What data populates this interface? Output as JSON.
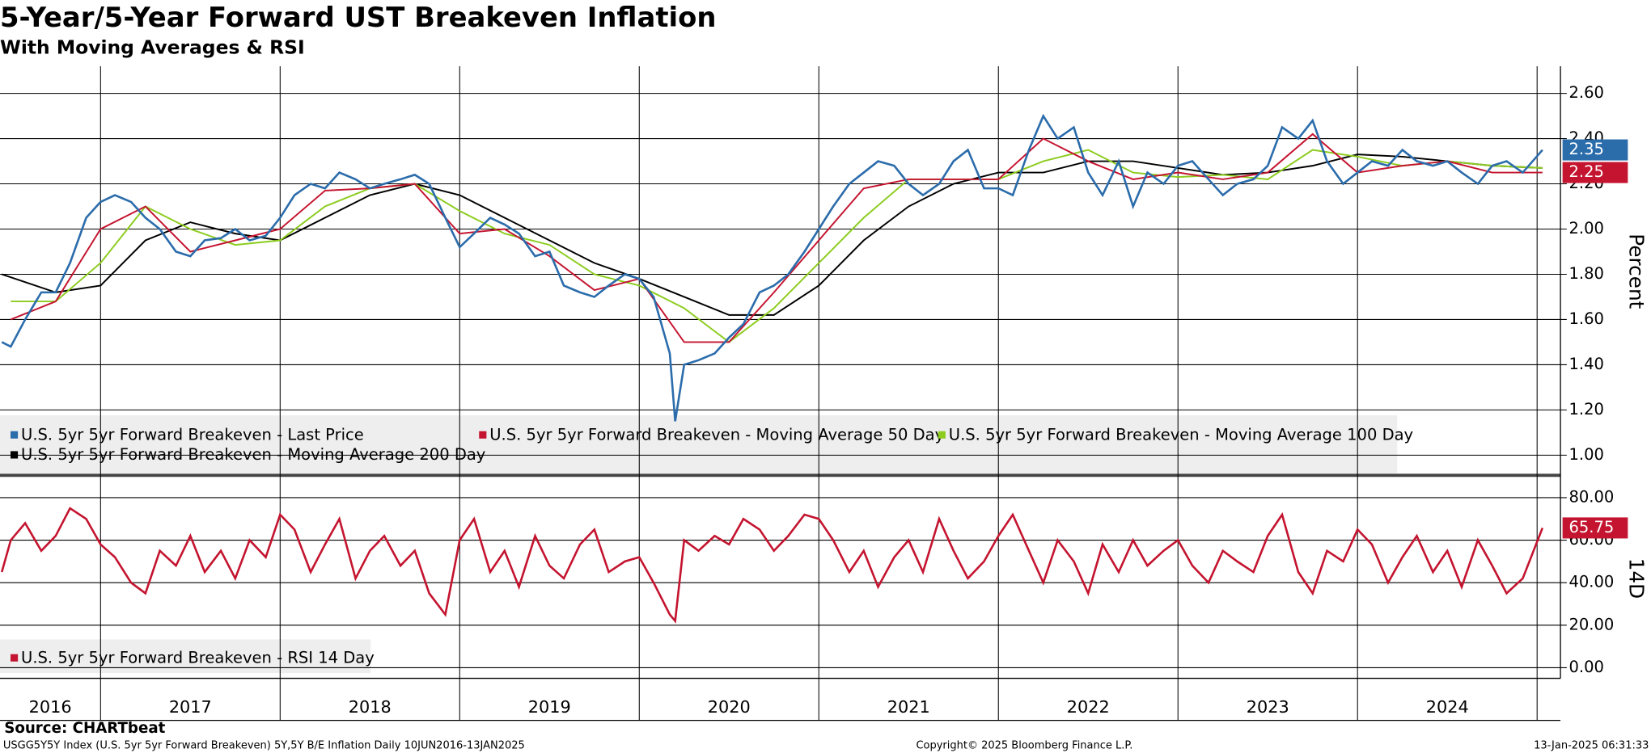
{
  "chart_data": {
    "type": "line",
    "title": "5-Year/5-Year Forward UST Breakeven Inflation",
    "subtitle": "With Moving Averages & RSI",
    "source": "Source: CHARTbeat",
    "footer_left": "USGG5Y5Y Index (U.S. 5yr 5yr Forward Breakeven) 5Y,5Y B/E Inflation  Daily 10JUN2016-13JAN2025",
    "footer_center": "Copyright© 2025 Bloomberg Finance L.P.",
    "footer_right": "13-Jan-2025 06:31:33",
    "xlim": [
      2016.44,
      2025.13
    ],
    "xgrid": [
      2017,
      2018,
      2019,
      2020,
      2021,
      2022,
      2023,
      2024,
      2025
    ],
    "xticks": [
      {
        "value": 2016.72,
        "label": "2016"
      },
      {
        "value": 2017.5,
        "label": "2017"
      },
      {
        "value": 2018.5,
        "label": "2018"
      },
      {
        "value": 2019.5,
        "label": "2019"
      },
      {
        "value": 2020.5,
        "label": "2020"
      },
      {
        "value": 2021.5,
        "label": "2021"
      },
      {
        "value": 2022.5,
        "label": "2022"
      },
      {
        "value": 2023.5,
        "label": "2023"
      },
      {
        "value": 2024.5,
        "label": "2024"
      }
    ],
    "x": [
      2016.45,
      2016.5,
      2016.58,
      2016.67,
      2016.75,
      2016.83,
      2016.92,
      2017.0,
      2017.08,
      2017.17,
      2017.25,
      2017.33,
      2017.42,
      2017.5,
      2017.58,
      2017.67,
      2017.75,
      2017.83,
      2017.92,
      2018.0,
      2018.08,
      2018.17,
      2018.25,
      2018.33,
      2018.42,
      2018.5,
      2018.58,
      2018.67,
      2018.75,
      2018.83,
      2018.92,
      2019.0,
      2019.08,
      2019.17,
      2019.25,
      2019.33,
      2019.42,
      2019.5,
      2019.58,
      2019.67,
      2019.75,
      2019.83,
      2019.92,
      2020.0,
      2020.08,
      2020.17,
      2020.2,
      2020.25,
      2020.33,
      2020.42,
      2020.5,
      2020.58,
      2020.67,
      2020.75,
      2020.83,
      2020.92,
      2021.0,
      2021.08,
      2021.17,
      2021.25,
      2021.33,
      2021.42,
      2021.5,
      2021.58,
      2021.67,
      2021.75,
      2021.83,
      2021.92,
      2022.0,
      2022.08,
      2022.17,
      2022.25,
      2022.33,
      2022.42,
      2022.5,
      2022.58,
      2022.67,
      2022.75,
      2022.83,
      2022.92,
      2023.0,
      2023.08,
      2023.17,
      2023.25,
      2023.33,
      2023.42,
      2023.5,
      2023.58,
      2023.67,
      2023.75,
      2023.83,
      2023.92,
      2024.0,
      2024.08,
      2024.17,
      2024.25,
      2024.33,
      2024.42,
      2024.5,
      2024.58,
      2024.67,
      2024.75,
      2024.83,
      2024.92,
      2025.03
    ],
    "panels": [
      {
        "ylim": [
          0.92,
          2.72
        ],
        "ylabel": "Percent",
        "yticks": [
          {
            "value": 1.0,
            "label": "1.00"
          },
          {
            "value": 1.2,
            "label": "1.20"
          },
          {
            "value": 1.4,
            "label": "1.40"
          },
          {
            "value": 1.6,
            "label": "1.60"
          },
          {
            "value": 1.8,
            "label": "1.80"
          },
          {
            "value": 2.0,
            "label": "2.00"
          },
          {
            "value": 2.2,
            "label": "2.20"
          },
          {
            "value": 2.4,
            "label": "2.40"
          },
          {
            "value": 2.6,
            "label": "2.60"
          }
        ],
        "series": [
          {
            "name": "U.S. 5yr 5yr Forward Breakeven - Last Price",
            "color": "#2b6cab",
            "last_label": "2.35",
            "values": [
              1.5,
              1.48,
              1.6,
              1.72,
              1.72,
              1.85,
              2.05,
              2.12,
              2.15,
              2.12,
              2.05,
              2.0,
              1.9,
              1.88,
              1.95,
              1.96,
              2.0,
              1.95,
              1.97,
              2.05,
              2.15,
              2.2,
              2.18,
              2.25,
              2.22,
              2.18,
              2.2,
              2.22,
              2.24,
              2.2,
              2.05,
              1.92,
              1.98,
              2.05,
              2.02,
              1.98,
              1.88,
              1.9,
              1.75,
              1.72,
              1.7,
              1.75,
              1.8,
              1.78,
              1.7,
              1.45,
              1.15,
              1.4,
              1.42,
              1.45,
              1.52,
              1.58,
              1.72,
              1.75,
              1.8,
              1.9,
              2.0,
              2.1,
              2.2,
              2.25,
              2.3,
              2.28,
              2.2,
              2.15,
              2.2,
              2.3,
              2.35,
              2.18,
              2.18,
              2.15,
              2.35,
              2.5,
              2.4,
              2.45,
              2.25,
              2.15,
              2.3,
              2.1,
              2.25,
              2.2,
              2.28,
              2.3,
              2.22,
              2.15,
              2.2,
              2.22,
              2.28,
              2.45,
              2.4,
              2.48,
              2.3,
              2.2,
              2.25,
              2.3,
              2.28,
              2.35,
              2.3,
              2.28,
              2.3,
              2.25,
              2.2,
              2.28,
              2.3,
              2.25,
              2.35
            ]
          },
          {
            "name": "U.S. 5yr 5yr Forward Breakeven - Moving Average 50 Day",
            "color": "#c4142f",
            "last_label": "2.25",
            "x": [
              2016.5,
              2016.75,
              2017.0,
              2017.25,
              2017.5,
              2017.75,
              2018.0,
              2018.25,
              2018.5,
              2018.75,
              2019.0,
              2019.25,
              2019.5,
              2019.75,
              2020.0,
              2020.25,
              2020.5,
              2020.75,
              2021.0,
              2021.25,
              2021.5,
              2021.75,
              2022.0,
              2022.25,
              2022.5,
              2022.75,
              2023.0,
              2023.25,
              2023.5,
              2023.75,
              2024.0,
              2024.25,
              2024.5,
              2024.75,
              2025.03
            ],
            "values": [
              1.6,
              1.68,
              2.0,
              2.1,
              1.9,
              1.95,
              2.0,
              2.17,
              2.18,
              2.2,
              1.98,
              2.0,
              1.88,
              1.73,
              1.78,
              1.5,
              1.5,
              1.72,
              1.95,
              2.18,
              2.22,
              2.22,
              2.22,
              2.4,
              2.3,
              2.22,
              2.25,
              2.22,
              2.25,
              2.42,
              2.25,
              2.28,
              2.3,
              2.25,
              2.25
            ]
          },
          {
            "name": "U.S. 5yr 5yr Forward Breakeven - Moving Average 100 Day",
            "color": "#8ccc1e",
            "x": [
              2016.5,
              2016.75,
              2017.0,
              2017.25,
              2017.5,
              2017.75,
              2018.0,
              2018.25,
              2018.5,
              2018.75,
              2019.0,
              2019.25,
              2019.5,
              2019.75,
              2020.0,
              2020.25,
              2020.5,
              2020.75,
              2021.0,
              2021.25,
              2021.5,
              2021.75,
              2022.0,
              2022.25,
              2022.5,
              2022.75,
              2023.0,
              2023.25,
              2023.5,
              2023.75,
              2024.0,
              2024.25,
              2024.5,
              2024.75,
              2025.03
            ],
            "values": [
              1.68,
              1.68,
              1.85,
              2.1,
              2.0,
              1.93,
              1.95,
              2.1,
              2.18,
              2.2,
              2.08,
              1.98,
              1.93,
              1.8,
              1.75,
              1.65,
              1.5,
              1.65,
              1.85,
              2.05,
              2.22,
              2.22,
              2.22,
              2.3,
              2.35,
              2.25,
              2.23,
              2.24,
              2.22,
              2.35,
              2.32,
              2.28,
              2.3,
              2.28,
              2.27
            ]
          },
          {
            "name": "U.S. 5yr 5yr Forward Breakeven - Moving Average 200 Day",
            "color": "#000000",
            "x": [
              2016.45,
              2016.75,
              2017.0,
              2017.25,
              2017.5,
              2017.75,
              2018.0,
              2018.25,
              2018.5,
              2018.75,
              2019.0,
              2019.25,
              2019.5,
              2019.75,
              2020.0,
              2020.25,
              2020.5,
              2020.75,
              2021.0,
              2021.25,
              2021.5,
              2021.75,
              2022.0,
              2022.25,
              2022.5,
              2022.75,
              2023.0,
              2023.25,
              2023.5,
              2023.75,
              2024.0,
              2024.25,
              2024.5,
              2024.75,
              2025.03
            ],
            "values": [
              1.8,
              1.72,
              1.75,
              1.95,
              2.03,
              1.98,
              1.95,
              2.05,
              2.15,
              2.2,
              2.15,
              2.05,
              1.95,
              1.85,
              1.78,
              1.7,
              1.62,
              1.62,
              1.75,
              1.95,
              2.1,
              2.2,
              2.25,
              2.25,
              2.3,
              2.3,
              2.27,
              2.24,
              2.25,
              2.28,
              2.33,
              2.32,
              2.3,
              2.28,
              2.27
            ]
          }
        ]
      },
      {
        "ylim": [
          -5,
          89
        ],
        "ylabel": "14D",
        "yticks": [
          {
            "value": 0,
            "label": "0.00"
          },
          {
            "value": 20,
            "label": "20.00"
          },
          {
            "value": 40,
            "label": "40.00"
          },
          {
            "value": 60,
            "label": "60.00"
          },
          {
            "value": 80,
            "label": "80.00"
          }
        ],
        "series": [
          {
            "name": "U.S. 5yr 5yr Forward Breakeven - RSI 14 Day",
            "color": "#c4142f",
            "last_label": "65.75",
            "values": [
              45,
              60,
              68,
              55,
              62,
              75,
              70,
              58,
              52,
              40,
              35,
              55,
              48,
              62,
              45,
              55,
              42,
              60,
              52,
              72,
              65,
              45,
              58,
              70,
              42,
              55,
              62,
              48,
              55,
              35,
              25,
              60,
              70,
              45,
              55,
              38,
              62,
              48,
              42,
              58,
              65,
              45,
              50,
              52,
              40,
              25,
              22,
              60,
              55,
              62,
              58,
              70,
              65,
              55,
              62,
              72,
              70,
              60,
              45,
              55,
              38,
              52,
              60,
              45,
              70,
              55,
              42,
              50,
              62,
              72,
              55,
              40,
              60,
              50,
              35,
              58,
              45,
              60,
              48,
              55,
              60,
              48,
              40,
              55,
              50,
              45,
              62,
              72,
              45,
              35,
              55,
              50,
              65,
              58,
              40,
              52,
              62,
              45,
              55,
              38,
              60,
              48,
              35,
              42,
              65.75
            ]
          }
        ]
      }
    ]
  }
}
